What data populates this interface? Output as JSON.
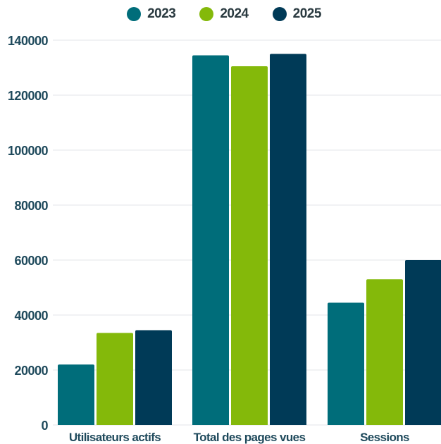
{
  "chart_data": {
    "type": "bar",
    "categories": [
      "Utilisateurs actifs",
      "Total des pages vues",
      "Sessions"
    ],
    "series": [
      {
        "name": "2023",
        "values": [
          22000,
          134500,
          44500
        ],
        "color": "#006d7a"
      },
      {
        "name": "2024",
        "values": [
          33500,
          130500,
          53000
        ],
        "color": "#84b90a"
      },
      {
        "name": "2025",
        "values": [
          34500,
          135000,
          60000
        ],
        "color": "#003a57"
      }
    ],
    "ylim": [
      0,
      140000
    ],
    "yticks": [
      0,
      20000,
      40000,
      60000,
      80000,
      100000,
      120000,
      140000
    ],
    "grid": true,
    "legend_position": "top-center",
    "title": "",
    "xlabel": "",
    "ylabel": ""
  }
}
